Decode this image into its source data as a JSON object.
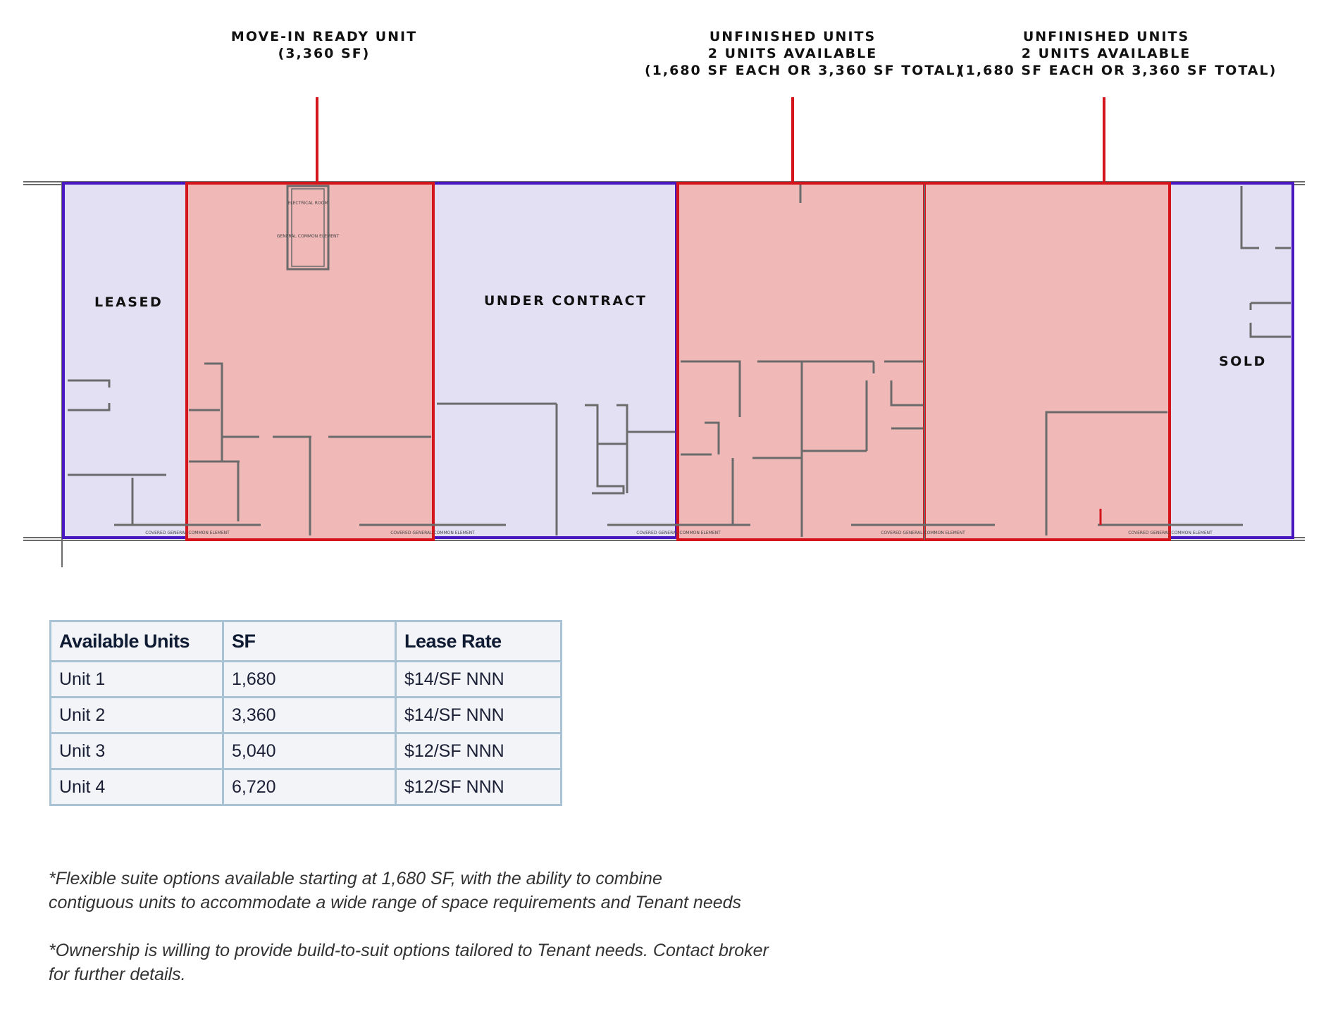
{
  "callouts": {
    "move_in": {
      "line1": "MOVE-IN READY UNIT",
      "line2": "(3,360 SF)"
    },
    "unfinished_a": {
      "line1": "UNFINISHED UNITS",
      "line2": "2 UNITS AVAILABLE",
      "line3": "(1,680 SF EACH OR 3,360 SF TOTAL)"
    },
    "unfinished_b": {
      "line1": "UNFINISHED UNITS",
      "line2": "2 UNITS AVAILABLE",
      "line3": "(1,680 SF EACH OR 3,360 SF TOTAL)"
    }
  },
  "plan": {
    "labels": {
      "leased": "LEASED",
      "under_contract": "UNDER CONTRACT",
      "sold": "SOLD",
      "electrical_room": "ELECTRICAL ROOM",
      "general_common": "GENERAL COMMON ELEMENT",
      "covered_common": "COVERED GENERAL COMMON ELEMENT"
    },
    "colors": {
      "available_fill": "#f1b8b8",
      "available_border": "#d4161c",
      "unavailable_fill": "#e4e0f4",
      "unavailable_border": "#4a18c0",
      "wall": "#6b6b6b"
    }
  },
  "table": {
    "headers": [
      "Available Units",
      "SF",
      "Lease Rate"
    ],
    "rows": [
      {
        "unit": "Unit 1",
        "sf": "1,680",
        "rate": "$14/SF NNN"
      },
      {
        "unit": "Unit 2",
        "sf": "3,360",
        "rate": "$14/SF NNN"
      },
      {
        "unit": "Unit 3",
        "sf": "5,040",
        "rate": "$12/SF NNN"
      },
      {
        "unit": "Unit 4",
        "sf": "6,720",
        "rate": "$12/SF NNN"
      }
    ]
  },
  "notes": {
    "note1_line1": "*Flexible suite options available starting at 1,680 SF, with the ability to combine",
    "note1_line2": "contiguous units to accommodate a wide range of space requirements and Tenant needs",
    "note2_line1": "*Ownership is willing to provide build-to-suit options tailored to Tenant needs. Contact broker",
    "note2_line2": "for further details."
  }
}
